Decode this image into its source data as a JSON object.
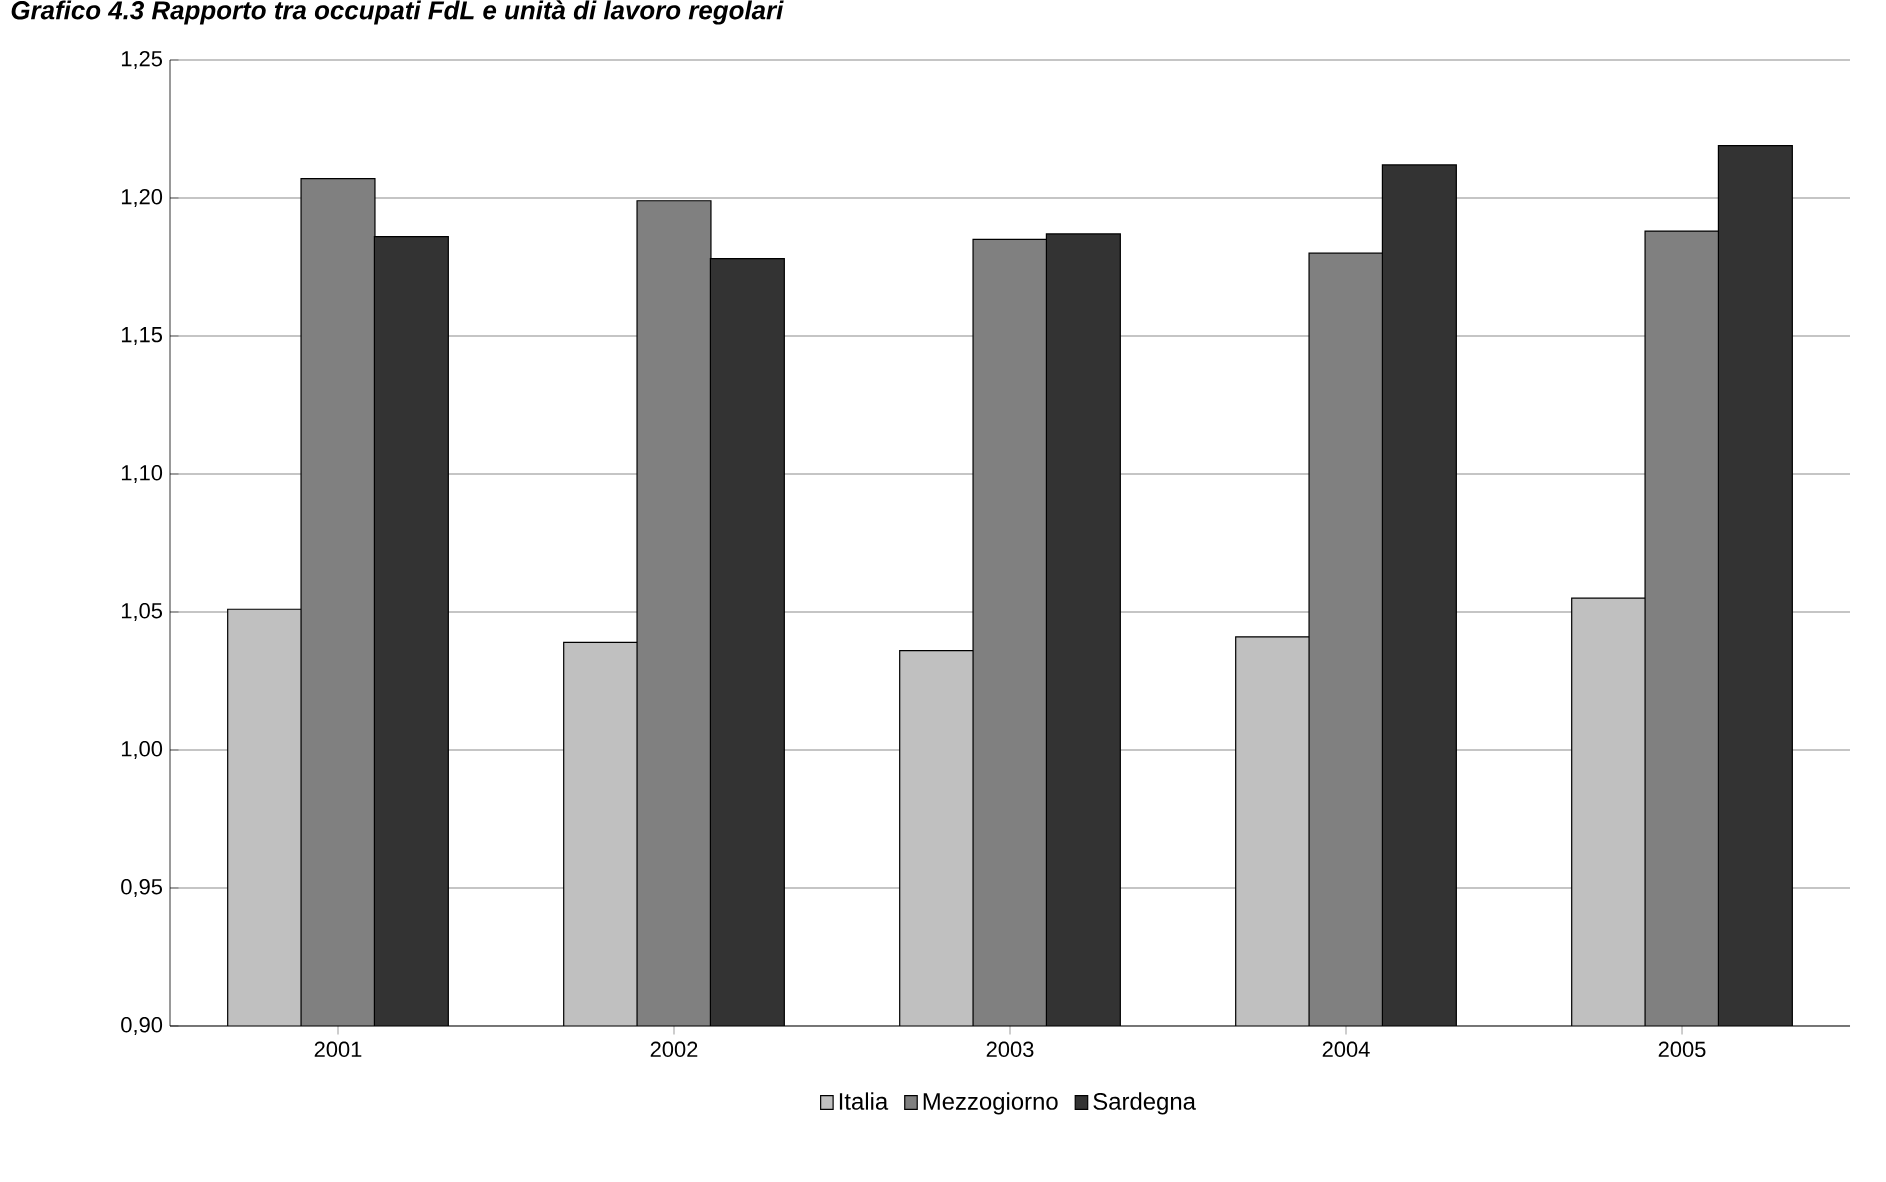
{
  "chart_data": {
    "type": "bar",
    "title": "Grafico 4.3 Rapporto tra occupati FdL e unità di lavoro regolari",
    "categories": [
      "2001",
      "2002",
      "2003",
      "2004",
      "2005"
    ],
    "series": [
      {
        "name": "Italia",
        "color": "#c0c0c0",
        "values": [
          1.051,
          1.039,
          1.036,
          1.041,
          1.055
        ]
      },
      {
        "name": "Mezzogiorno",
        "color": "#808080",
        "values": [
          1.207,
          1.199,
          1.185,
          1.18,
          1.188
        ]
      },
      {
        "name": "Sardegna",
        "color": "#333333",
        "values": [
          1.186,
          1.178,
          1.187,
          1.212,
          1.219
        ]
      }
    ],
    "ylim": [
      0.9,
      1.25
    ],
    "yticks": [
      {
        "value": 0.9,
        "label": "0,90"
      },
      {
        "value": 0.95,
        "label": "0,95"
      },
      {
        "value": 1.0,
        "label": "1,00"
      },
      {
        "value": 1.05,
        "label": "1,05"
      },
      {
        "value": 1.1,
        "label": "1,10"
      },
      {
        "value": 1.15,
        "label": "1,15"
      },
      {
        "value": 1.2,
        "label": "1,20"
      },
      {
        "value": 1.25,
        "label": "1,25"
      }
    ],
    "grid": "y",
    "legend": "bottom"
  }
}
